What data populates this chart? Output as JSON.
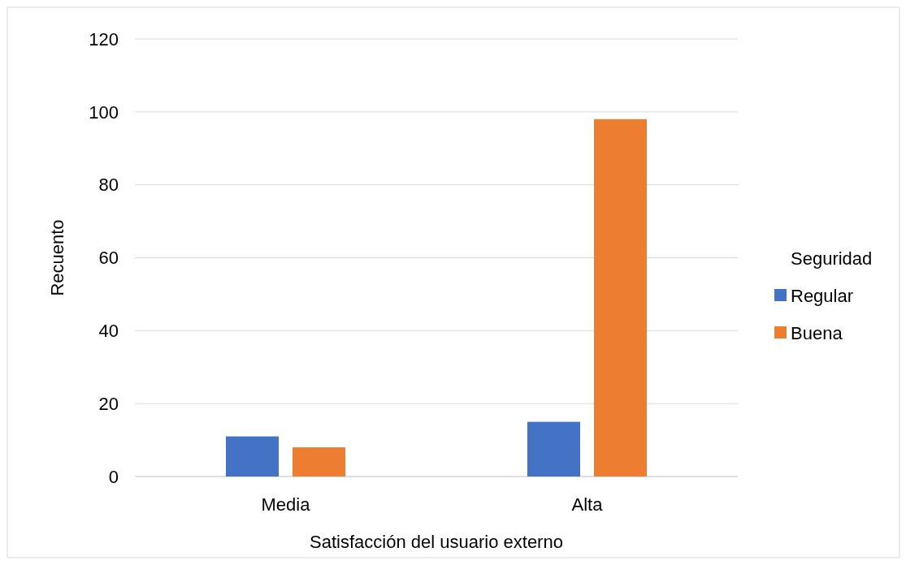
{
  "chart_data": {
    "type": "bar",
    "xlabel": "Satisfacción del usuario externo",
    "ylabel": "Recuento",
    "legend_title": "Seguridad",
    "categories": [
      "Media",
      "Alta"
    ],
    "series": [
      {
        "name": "Regular",
        "color": "#4472c4",
        "values": [
          11,
          15
        ]
      },
      {
        "name": "Buena",
        "color": "#ed7d31",
        "values": [
          8,
          98
        ]
      }
    ],
    "ylim": [
      0,
      120
    ],
    "yticks": [
      0,
      20,
      40,
      60,
      80,
      100,
      120
    ],
    "grid": "y",
    "legend": "right"
  }
}
